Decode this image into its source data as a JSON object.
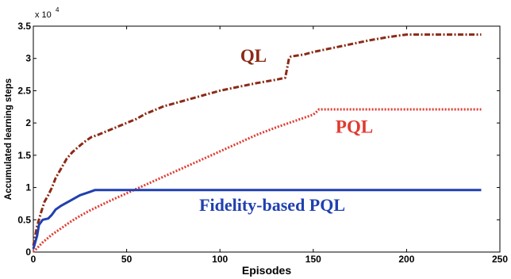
{
  "chart_data": {
    "type": "line",
    "title": "",
    "xlabel": "Episodes",
    "ylabel": "Accumulated learning steps",
    "y_multiplier": {
      "base": "x 10",
      "exponent": "4"
    },
    "xlim": [
      0,
      250
    ],
    "ylim": [
      0,
      3.5
    ],
    "xticks": [
      {
        "value": 0,
        "label": "0"
      },
      {
        "value": 50,
        "label": "50"
      },
      {
        "value": 100,
        "label": "100"
      },
      {
        "value": 150,
        "label": "150"
      },
      {
        "value": 200,
        "label": "200"
      },
      {
        "value": 250,
        "label": "250"
      }
    ],
    "yticks": [
      {
        "value": 0,
        "label": "0"
      },
      {
        "value": 0.5,
        "label": "0.5"
      },
      {
        "value": 1,
        "label": "1"
      },
      {
        "value": 1.5,
        "label": "1.5"
      },
      {
        "value": 2,
        "label": "2"
      },
      {
        "value": 2.5,
        "label": "2.5"
      },
      {
        "value": 3,
        "label": "3"
      },
      {
        "value": 3.5,
        "label": "3.5"
      }
    ],
    "grid": false,
    "series": [
      {
        "name": "QL",
        "color": "#8b2a16",
        "style": "dash-dot",
        "label_pos": [
          118,
          2.95
        ],
        "label_size": 23,
        "x": [
          0,
          1,
          2,
          4,
          6,
          8,
          10,
          12,
          15,
          18,
          21,
          25,
          28,
          31,
          35,
          40,
          45,
          50,
          55,
          60,
          65,
          70,
          80,
          90,
          100,
          110,
          120,
          130,
          135,
          136,
          137,
          138,
          145,
          150,
          160,
          170,
          180,
          190,
          200,
          210,
          220,
          230,
          240
        ],
        "y": [
          0.1,
          0.25,
          0.4,
          0.6,
          0.78,
          0.88,
          1.0,
          1.15,
          1.3,
          1.45,
          1.55,
          1.65,
          1.72,
          1.78,
          1.82,
          1.88,
          1.94,
          2.0,
          2.06,
          2.14,
          2.2,
          2.26,
          2.34,
          2.42,
          2.5,
          2.56,
          2.62,
          2.67,
          2.7,
          2.85,
          3.0,
          3.03,
          3.06,
          3.1,
          3.16,
          3.22,
          3.28,
          3.33,
          3.37,
          3.37,
          3.37,
          3.37,
          3.37
        ]
      },
      {
        "name": "PQL",
        "color": "#e03a30",
        "style": "dotted",
        "label_pos": [
          172,
          1.85
        ],
        "label_size": 23,
        "x": [
          0,
          5,
          10,
          15,
          20,
          25,
          30,
          40,
          50,
          60,
          70,
          80,
          90,
          100,
          110,
          120,
          130,
          140,
          150,
          152,
          153,
          160,
          180,
          200,
          220,
          240
        ],
        "y": [
          0.0,
          0.15,
          0.27,
          0.37,
          0.47,
          0.56,
          0.64,
          0.78,
          0.91,
          1.04,
          1.17,
          1.3,
          1.43,
          1.56,
          1.69,
          1.82,
          1.93,
          2.03,
          2.13,
          2.18,
          2.21,
          2.21,
          2.21,
          2.21,
          2.21,
          2.21
        ]
      },
      {
        "name": "Fidelity-based PQL",
        "color": "#2040b0",
        "style": "solid",
        "label_pos": [
          128,
          0.64
        ],
        "label_size": 22,
        "x": [
          0,
          2,
          3,
          5,
          8,
          10,
          12,
          15,
          20,
          25,
          30,
          33,
          35,
          240
        ],
        "y": [
          0.05,
          0.25,
          0.42,
          0.5,
          0.52,
          0.58,
          0.66,
          0.72,
          0.8,
          0.88,
          0.93,
          0.96,
          0.96,
          0.96
        ]
      }
    ]
  }
}
